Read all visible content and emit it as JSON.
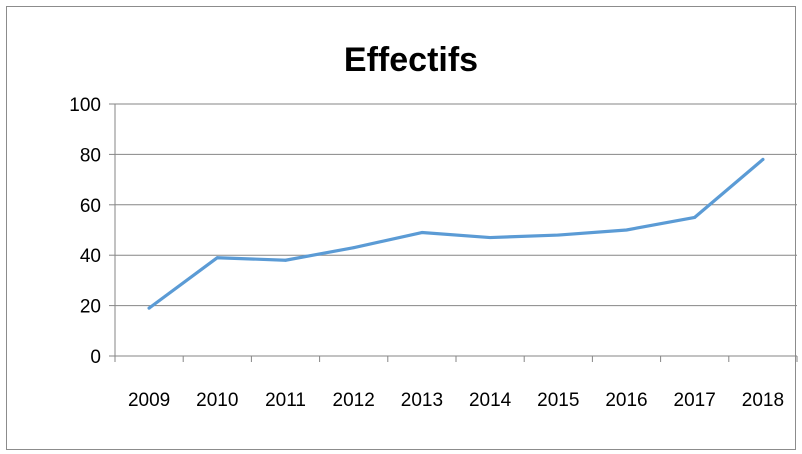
{
  "chart_data": {
    "type": "line",
    "title": "Effectifs",
    "categories": [
      "2009",
      "2010",
      "2011",
      "2012",
      "2013",
      "2014",
      "2015",
      "2016",
      "2017",
      "2018"
    ],
    "series": [
      {
        "values": [
          19,
          39,
          38,
          43,
          49,
          47,
          48,
          50,
          55,
          78
        ]
      }
    ],
    "ylim": [
      0,
      100
    ],
    "yticks": [
      0,
      20,
      40,
      60,
      80,
      100
    ],
    "grid": true,
    "colors": {
      "line": "#5b9bd5",
      "grid": "#868686",
      "axis": "#868686"
    }
  }
}
